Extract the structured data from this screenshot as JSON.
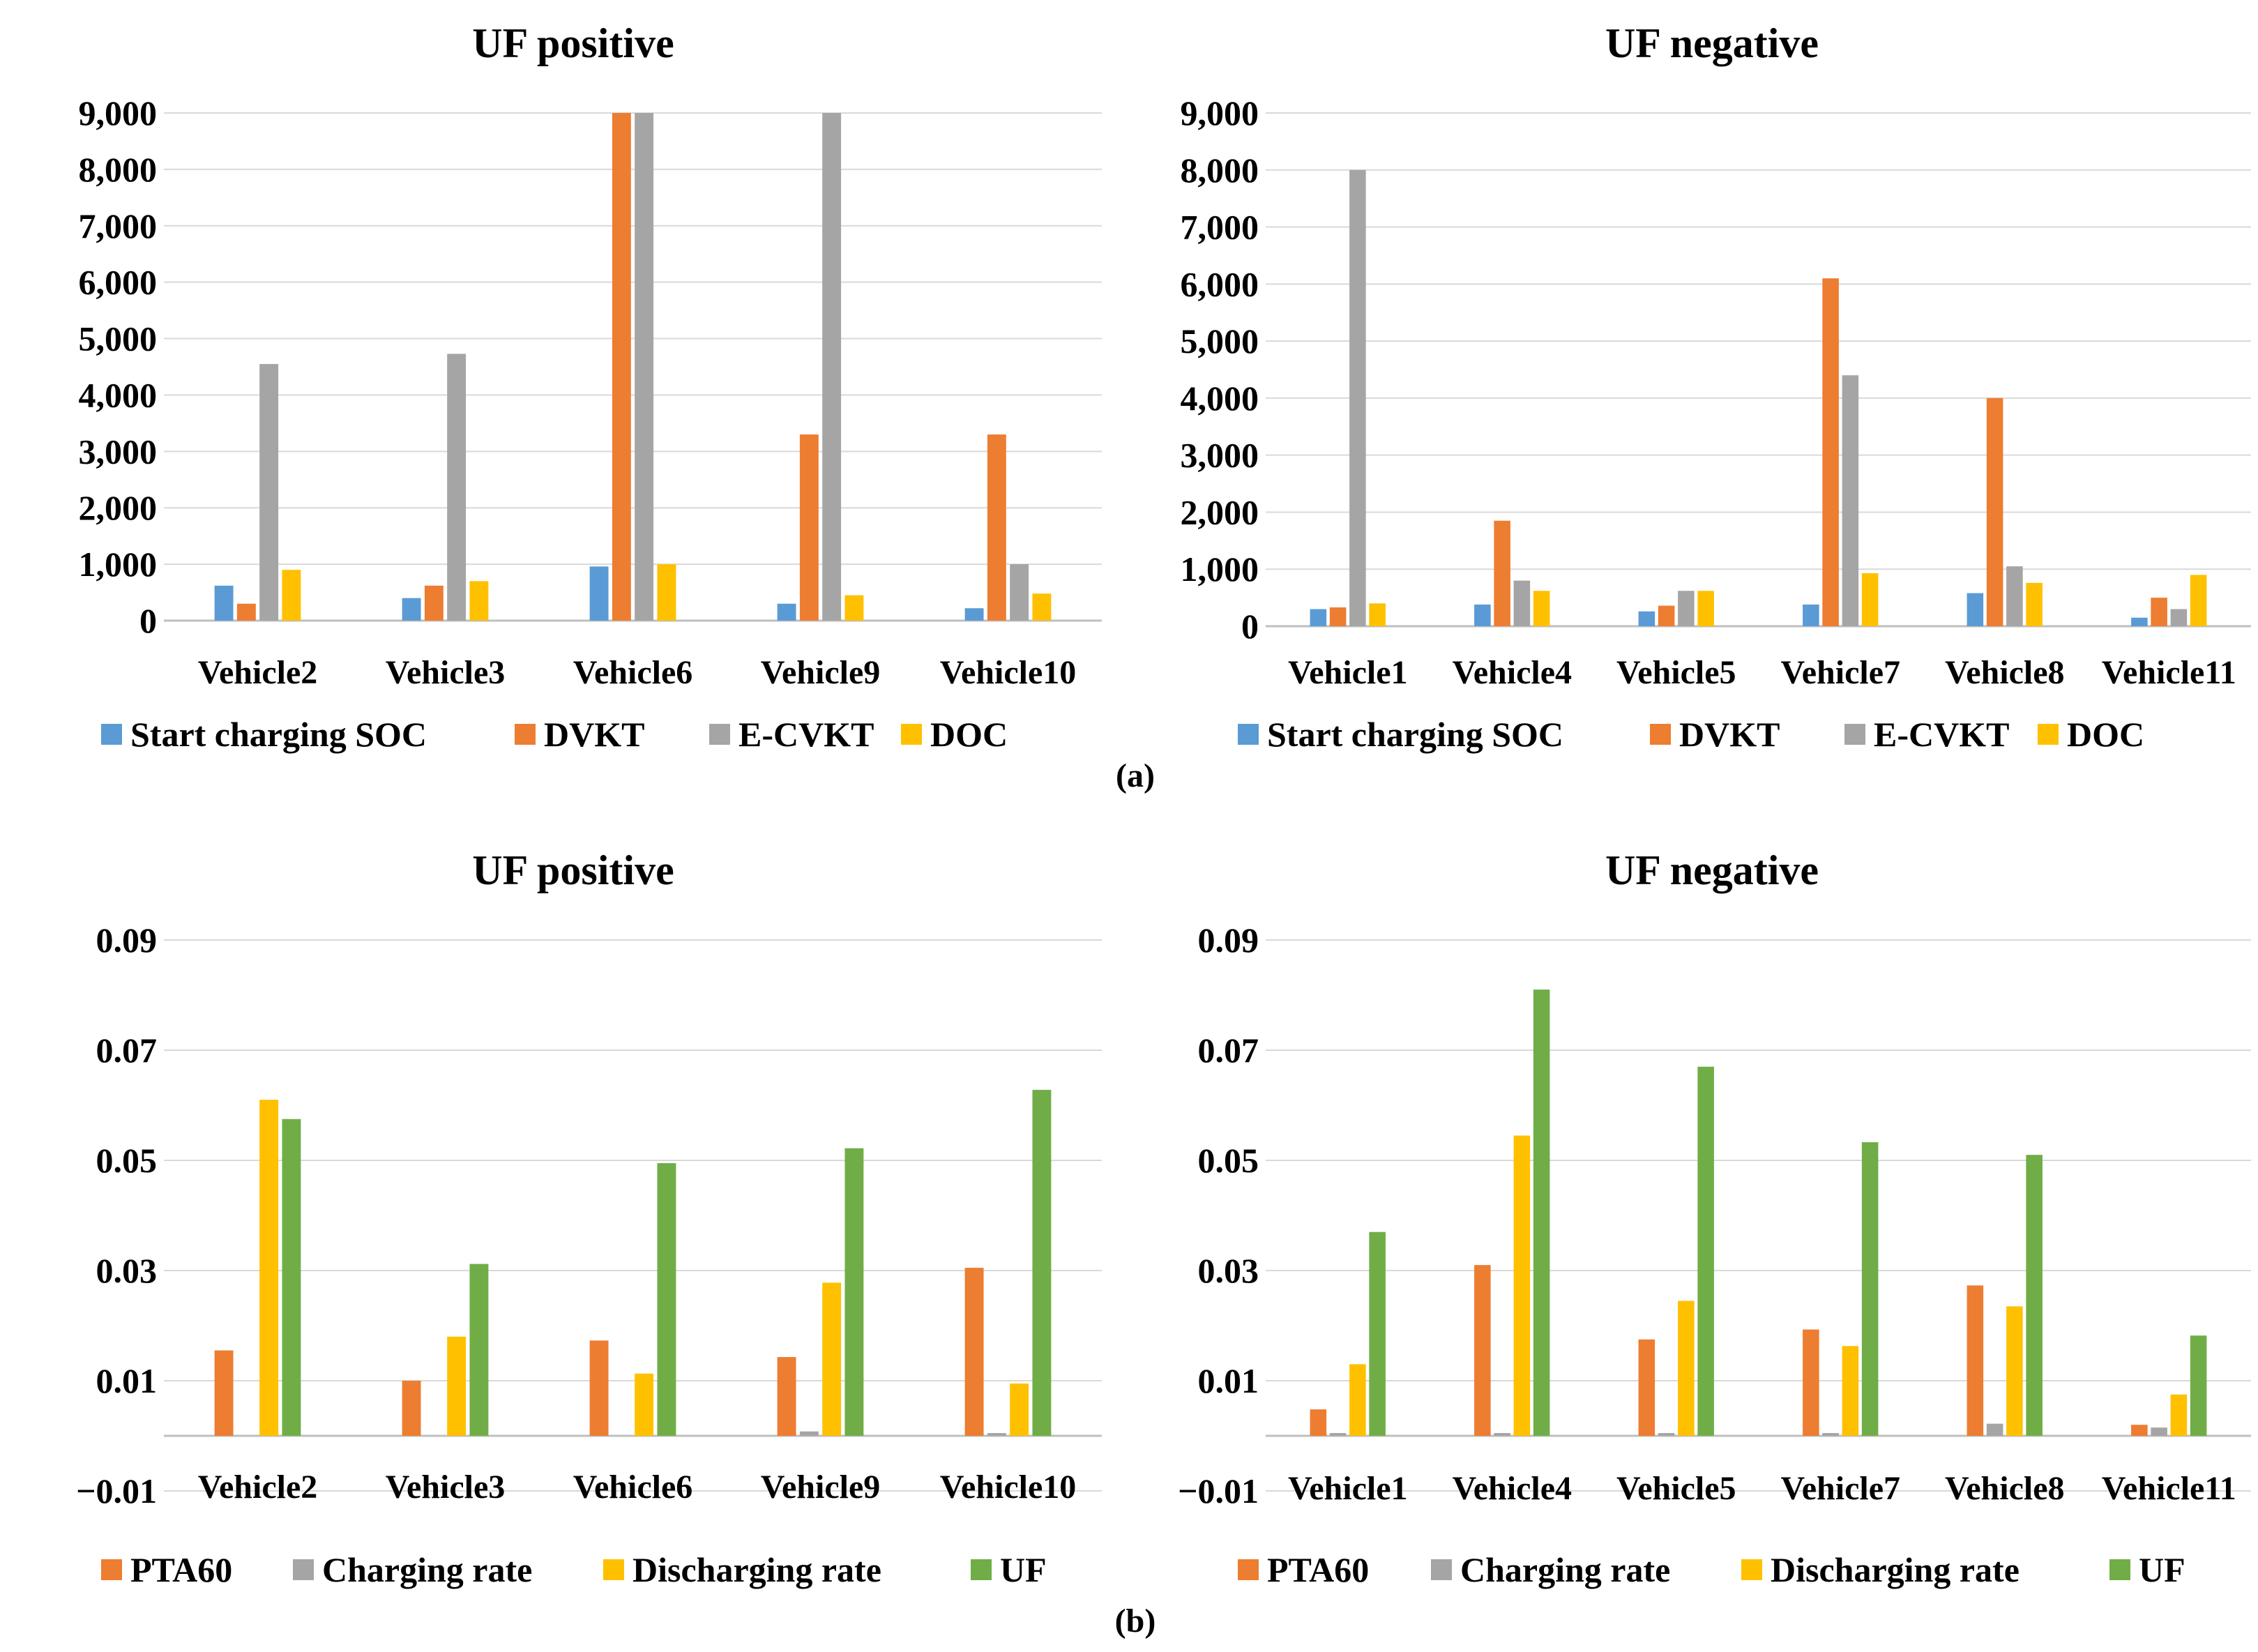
{
  "panel_labels": [
    "(a)",
    "(b)"
  ],
  "colors": {
    "Start charging SOC": "#5B9BD5",
    "DVKT": "#ED7D31",
    "E-CVKT": "#A5A5A5",
    "DOC": "#FFC000",
    "PTA60": "#ED7D31",
    "Charging rate": "#A5A5A5",
    "Discharging rate": "#FFC000",
    "UF": "#70AD47",
    "gridline": "#D9D9D9",
    "axis": "#BFBFBF"
  },
  "chart_data": [
    {
      "id": "a-positive",
      "type": "bar",
      "title": "UF positive",
      "categories": [
        "Vehicle2",
        "Vehicle3",
        "Vehicle6",
        "Vehicle9",
        "Vehicle10"
      ],
      "series": [
        {
          "name": "Start charging SOC",
          "values": [
            620,
            400,
            960,
            300,
            220
          ]
        },
        {
          "name": "DVKT",
          "values": [
            300,
            620,
            9000,
            3300,
            3300
          ]
        },
        {
          "name": "E-CVKT",
          "values": [
            4550,
            4730,
            9000,
            9000,
            1000
          ]
        },
        {
          "name": "DOC",
          "values": [
            900,
            700,
            1000,
            450,
            480
          ]
        }
      ],
      "ylim": [
        0,
        9000
      ],
      "yticks": [
        0,
        1000,
        2000,
        3000,
        4000,
        5000,
        6000,
        7000,
        8000,
        9000
      ],
      "ytick_labels": [
        "0",
        "1,000",
        "2,000",
        "3,000",
        "4,000",
        "5,000",
        "6,000",
        "7,000",
        "8,000",
        "9,000"
      ],
      "legend": [
        "Start charging SOC",
        "DVKT",
        "E-CVKT",
        "DOC"
      ],
      "legend_position": "bottom",
      "grid": true
    },
    {
      "id": "a-negative",
      "type": "bar",
      "title": "UF negative",
      "categories": [
        "Vehicle1",
        "Vehicle4",
        "Vehicle5",
        "Vehicle7",
        "Vehicle8",
        "Vehicle11"
      ],
      "series": [
        {
          "name": "Start charging SOC",
          "values": [
            300,
            380,
            260,
            380,
            580,
            150
          ]
        },
        {
          "name": "DVKT",
          "values": [
            330,
            1850,
            360,
            6100,
            4000,
            500
          ]
        },
        {
          "name": "E-CVKT",
          "values": [
            8000,
            800,
            620,
            4400,
            1050,
            300
          ]
        },
        {
          "name": "DOC",
          "values": [
            400,
            620,
            620,
            930,
            760,
            900
          ]
        }
      ],
      "ylim": [
        0,
        9000
      ],
      "yticks": [
        0,
        1000,
        2000,
        3000,
        4000,
        5000,
        6000,
        7000,
        8000,
        9000
      ],
      "ytick_labels": [
        "0",
        "1,000",
        "2,000",
        "3,000",
        "4,000",
        "5,000",
        "6,000",
        "7,000",
        "8,000",
        "9,000"
      ],
      "legend": [
        "Start charging SOC",
        "DVKT",
        "E-CVKT",
        "DOC"
      ],
      "legend_position": "bottom",
      "grid": true
    },
    {
      "id": "b-positive",
      "type": "bar",
      "title": "UF positive",
      "categories": [
        "Vehicle2",
        "Vehicle3",
        "Vehicle6",
        "Vehicle9",
        "Vehicle10"
      ],
      "series": [
        {
          "name": "PTA60",
          "values": [
            0.0155,
            0.01,
            0.0173,
            0.0143,
            0.0305
          ]
        },
        {
          "name": "Charging rate",
          "values": [
            0,
            0,
            0,
            0.0008,
            0.0005
          ]
        },
        {
          "name": "Discharging rate",
          "values": [
            0.061,
            0.018,
            0.0113,
            0.0278,
            0.0095
          ]
        },
        {
          "name": "UF",
          "values": [
            0.0575,
            0.0312,
            0.0495,
            0.0522,
            0.0628
          ]
        }
      ],
      "ylim": [
        -0.01,
        0.09
      ],
      "yticks": [
        -0.01,
        0.01,
        0.03,
        0.05,
        0.07,
        0.09
      ],
      "ytick_labels": [
        "−0.01",
        "0.01",
        "0.03",
        "0.05",
        "0.07",
        "0.09"
      ],
      "legend": [
        "PTA60",
        "Charging rate",
        "Discharging rate",
        "UF"
      ],
      "legend_position": "bottom",
      "grid": true
    },
    {
      "id": "b-negative",
      "type": "bar",
      "title": "UF negative",
      "categories": [
        "Vehicle1",
        "Vehicle4",
        "Vehicle5",
        "Vehicle7",
        "Vehicle8",
        "Vehicle11"
      ],
      "series": [
        {
          "name": "PTA60",
          "values": [
            0.0048,
            0.031,
            0.0175,
            0.0193,
            0.0273,
            0.002
          ]
        },
        {
          "name": "Charging rate",
          "values": [
            0.0005,
            0.0005,
            0.0005,
            0.0005,
            0.0022,
            0.0015
          ]
        },
        {
          "name": "Discharging rate",
          "values": [
            0.013,
            0.0545,
            0.0245,
            0.0163,
            0.0235,
            0.0075
          ]
        },
        {
          "name": "UF",
          "values": [
            0.037,
            0.081,
            0.067,
            0.0533,
            0.051,
            0.0182
          ]
        }
      ],
      "ylim": [
        -0.01,
        0.09
      ],
      "yticks": [
        -0.01,
        0.01,
        0.03,
        0.05,
        0.07,
        0.09
      ],
      "ytick_labels": [
        "−0.01",
        "0.01",
        "0.03",
        "0.05",
        "0.07",
        "0.09"
      ],
      "legend": [
        "PTA60",
        "Charging rate",
        "Discharging rate",
        "UF"
      ],
      "legend_position": "bottom",
      "grid": true
    }
  ]
}
